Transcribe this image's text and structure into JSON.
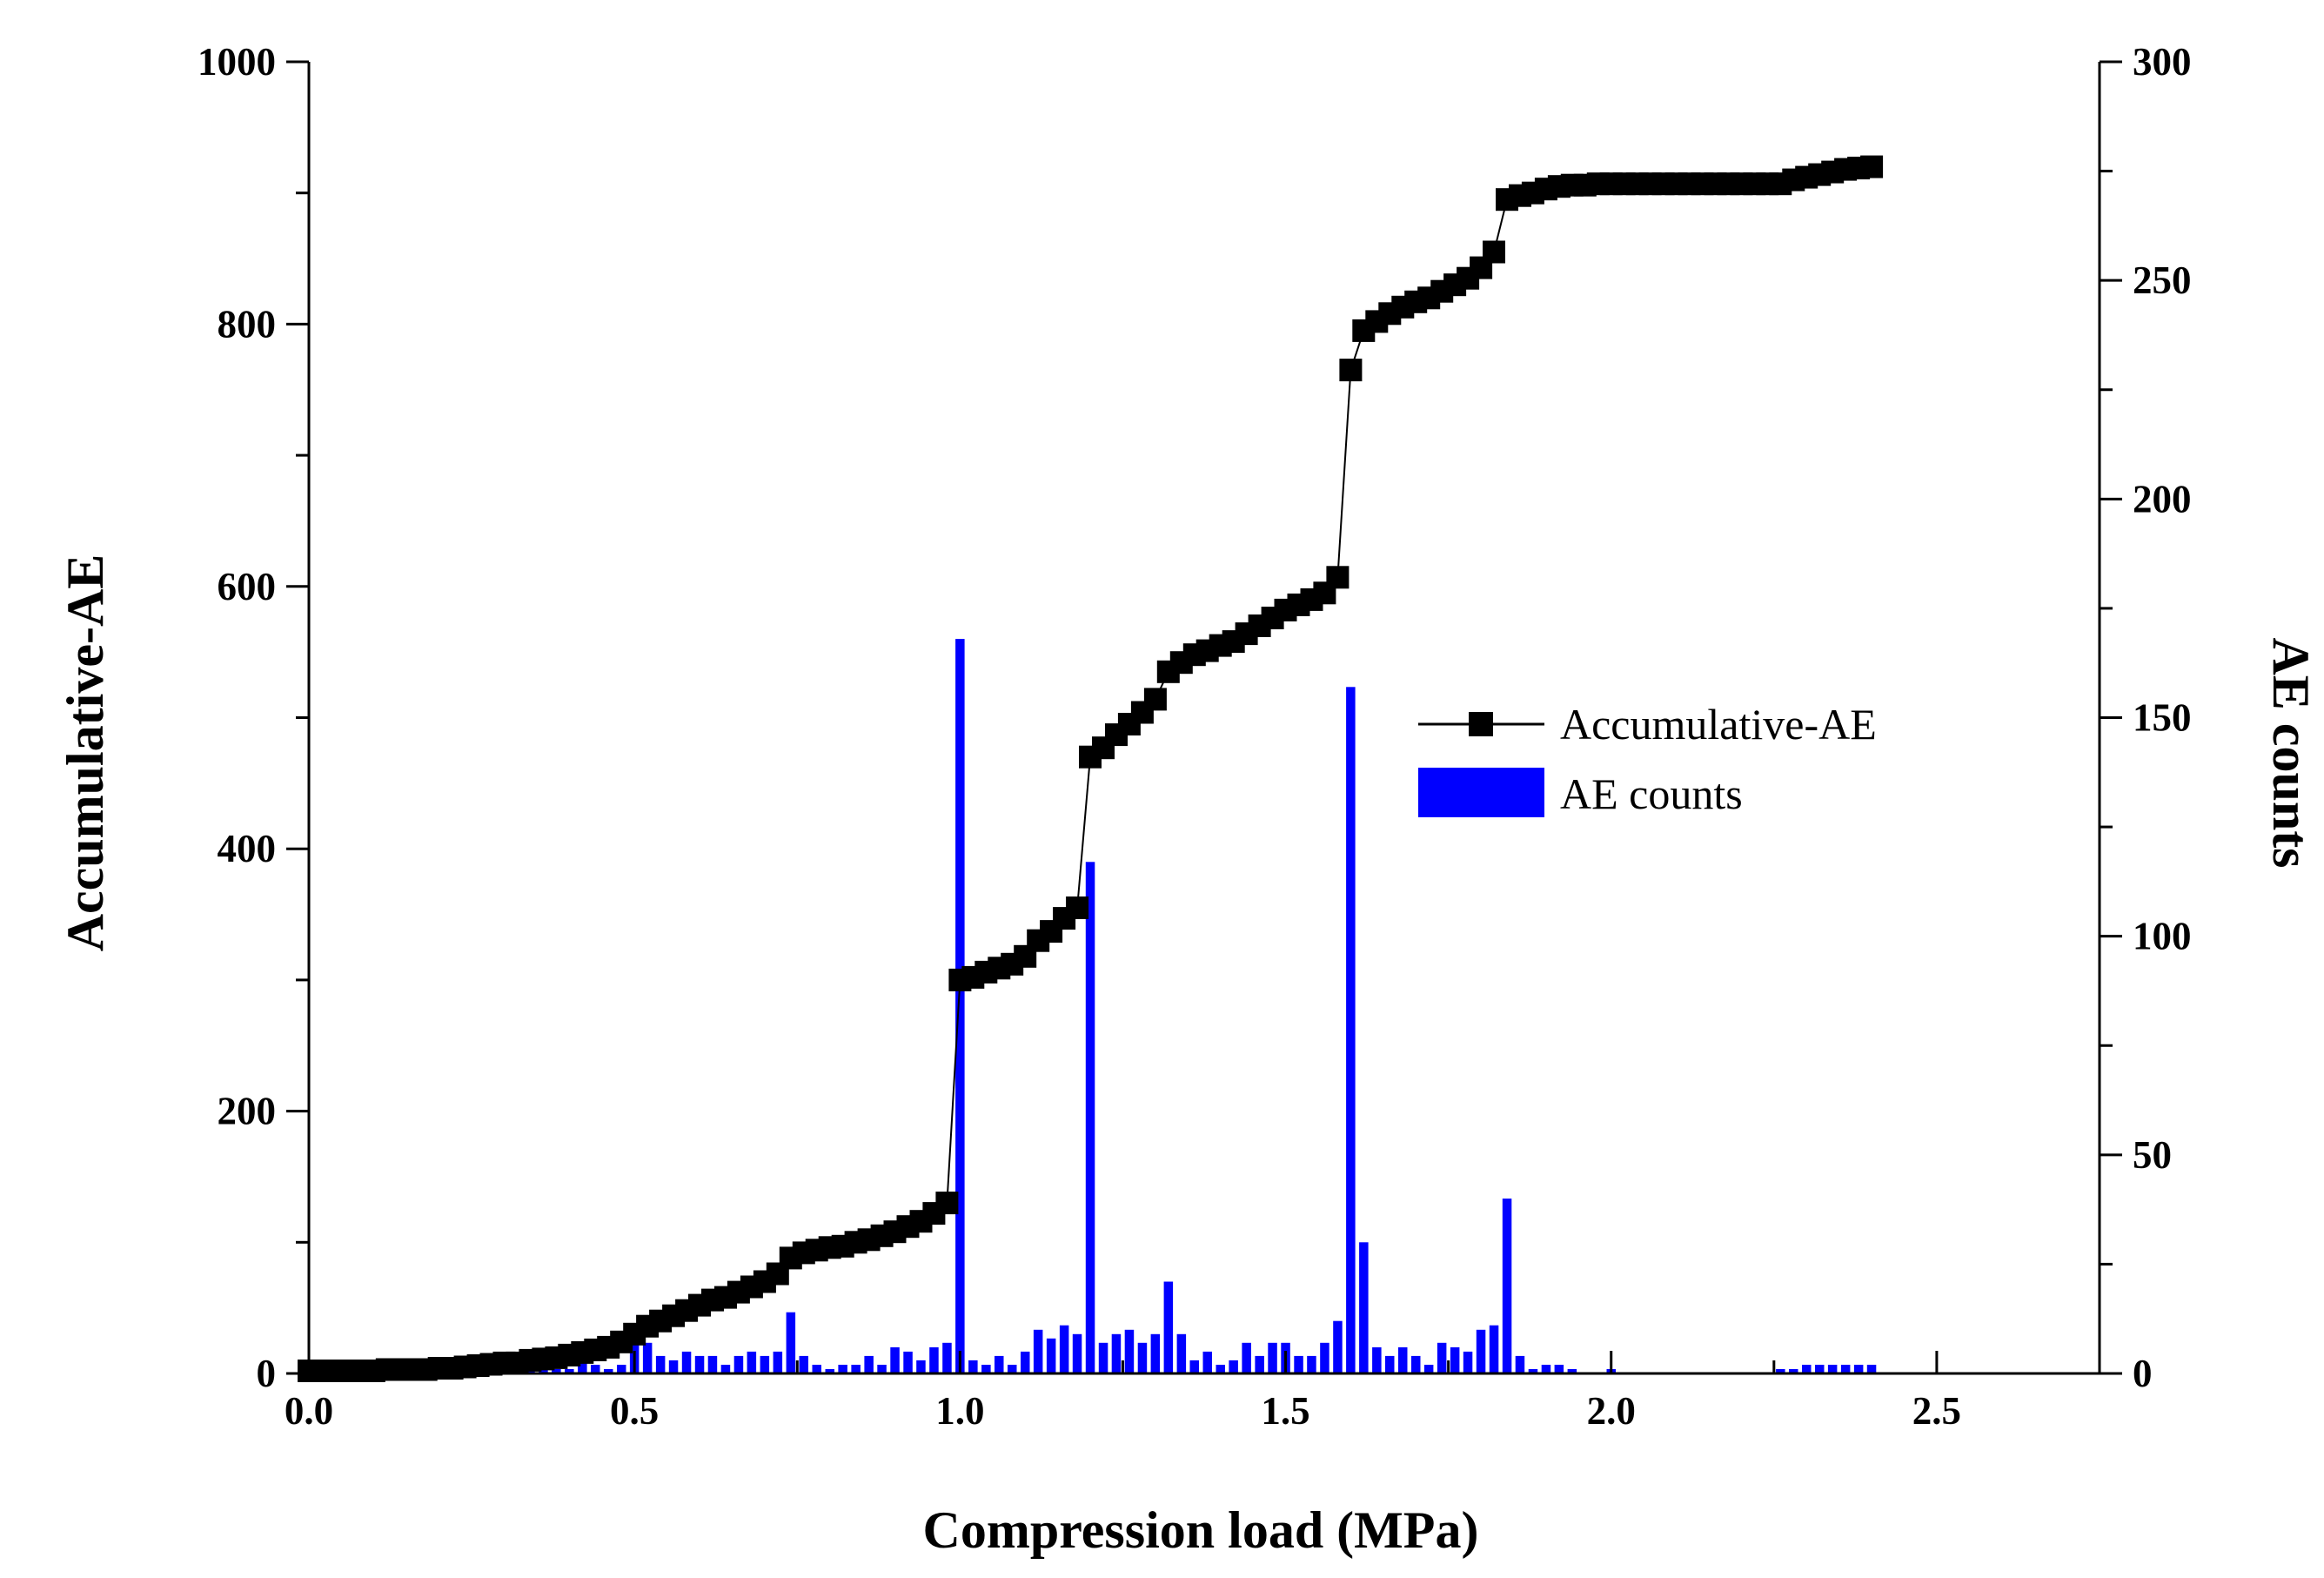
{
  "chart_data": {
    "type": "bar+line",
    "title": "",
    "xlabel": "Compression load (MPa)",
    "ylabel_left": "Accumulative-AE",
    "ylabel_right": "AE counts",
    "xlim": [
      0,
      2.75
    ],
    "ylim_left": [
      0,
      1000
    ],
    "ylim_right": [
      0,
      300
    ],
    "grid": false,
    "legend_position": "center-right",
    "x_ticks": [
      "0.0",
      "0.5",
      "1.0",
      "1.5",
      "2.0",
      "2.5"
    ],
    "y_left_ticks": [
      "0",
      "200",
      "400",
      "600",
      "800",
      "1000"
    ],
    "y_right_ticks": [
      "0",
      "50",
      "100",
      "150",
      "200",
      "250",
      "300"
    ],
    "series": [
      {
        "name": "Accumulative-AE",
        "kind": "line-square",
        "axis": "left",
        "color": "#000000",
        "points": [
          [
            0.0,
            2
          ],
          [
            0.02,
            2
          ],
          [
            0.04,
            2
          ],
          [
            0.06,
            2
          ],
          [
            0.08,
            2
          ],
          [
            0.1,
            2
          ],
          [
            0.12,
            3
          ],
          [
            0.14,
            3
          ],
          [
            0.16,
            3
          ],
          [
            0.18,
            3
          ],
          [
            0.2,
            4
          ],
          [
            0.22,
            4
          ],
          [
            0.24,
            5
          ],
          [
            0.26,
            6
          ],
          [
            0.28,
            7
          ],
          [
            0.3,
            8
          ],
          [
            0.32,
            8
          ],
          [
            0.34,
            10
          ],
          [
            0.36,
            11
          ],
          [
            0.38,
            12
          ],
          [
            0.4,
            14
          ],
          [
            0.42,
            16
          ],
          [
            0.44,
            18
          ],
          [
            0.46,
            20
          ],
          [
            0.48,
            24
          ],
          [
            0.5,
            30
          ],
          [
            0.52,
            36
          ],
          [
            0.54,
            40
          ],
          [
            0.56,
            44
          ],
          [
            0.58,
            48
          ],
          [
            0.6,
            52
          ],
          [
            0.62,
            56
          ],
          [
            0.64,
            58
          ],
          [
            0.66,
            62
          ],
          [
            0.68,
            66
          ],
          [
            0.7,
            70
          ],
          [
            0.72,
            76
          ],
          [
            0.74,
            88
          ],
          [
            0.76,
            92
          ],
          [
            0.78,
            94
          ],
          [
            0.8,
            96
          ],
          [
            0.82,
            97
          ],
          [
            0.84,
            100
          ],
          [
            0.86,
            102
          ],
          [
            0.88,
            105
          ],
          [
            0.9,
            108
          ],
          [
            0.92,
            112
          ],
          [
            0.94,
            116
          ],
          [
            0.96,
            122
          ],
          [
            0.98,
            130
          ],
          [
            1.0,
            300
          ],
          [
            1.02,
            302
          ],
          [
            1.04,
            306
          ],
          [
            1.06,
            309
          ],
          [
            1.08,
            312
          ],
          [
            1.1,
            318
          ],
          [
            1.12,
            330
          ],
          [
            1.14,
            337
          ],
          [
            1.16,
            347
          ],
          [
            1.18,
            355
          ],
          [
            1.2,
            470
          ],
          [
            1.22,
            477
          ],
          [
            1.24,
            487
          ],
          [
            1.26,
            495
          ],
          [
            1.28,
            504
          ],
          [
            1.3,
            514
          ],
          [
            1.32,
            535
          ],
          [
            1.34,
            542
          ],
          [
            1.36,
            548
          ],
          [
            1.38,
            551
          ],
          [
            1.4,
            555
          ],
          [
            1.42,
            558
          ],
          [
            1.44,
            564
          ],
          [
            1.46,
            570
          ],
          [
            1.48,
            576
          ],
          [
            1.5,
            582
          ],
          [
            1.52,
            586
          ],
          [
            1.54,
            590
          ],
          [
            1.56,
            595
          ],
          [
            1.58,
            607
          ],
          [
            1.6,
            765
          ],
          [
            1.62,
            795
          ],
          [
            1.64,
            802
          ],
          [
            1.66,
            808
          ],
          [
            1.68,
            813
          ],
          [
            1.7,
            817
          ],
          [
            1.72,
            820
          ],
          [
            1.74,
            825
          ],
          [
            1.76,
            830
          ],
          [
            1.78,
            835
          ],
          [
            1.8,
            843
          ],
          [
            1.82,
            855
          ],
          [
            1.84,
            895
          ],
          [
            1.86,
            898
          ],
          [
            1.88,
            900
          ],
          [
            1.9,
            903
          ],
          [
            1.92,
            905
          ],
          [
            1.94,
            906
          ],
          [
            1.96,
            906
          ],
          [
            1.98,
            907
          ],
          [
            2.0,
            907
          ],
          [
            2.02,
            907
          ],
          [
            2.04,
            907
          ],
          [
            2.06,
            907
          ],
          [
            2.08,
            907
          ],
          [
            2.1,
            907
          ],
          [
            2.12,
            907
          ],
          [
            2.14,
            907
          ],
          [
            2.16,
            907
          ],
          [
            2.18,
            907
          ],
          [
            2.2,
            907
          ],
          [
            2.22,
            907
          ],
          [
            2.24,
            907
          ],
          [
            2.26,
            907
          ],
          [
            2.28,
            910
          ],
          [
            2.3,
            912
          ],
          [
            2.32,
            914
          ],
          [
            2.34,
            916
          ],
          [
            2.36,
            918
          ],
          [
            2.38,
            919
          ],
          [
            2.4,
            920
          ]
        ]
      },
      {
        "name": "AE counts",
        "kind": "bar",
        "axis": "right",
        "color": "#0000FF",
        "points": [
          [
            0.04,
            1
          ],
          [
            0.06,
            1
          ],
          [
            0.14,
            1
          ],
          [
            0.16,
            1
          ],
          [
            0.22,
            2
          ],
          [
            0.24,
            1
          ],
          [
            0.26,
            1
          ],
          [
            0.28,
            2
          ],
          [
            0.3,
            1
          ],
          [
            0.32,
            1
          ],
          [
            0.34,
            2
          ],
          [
            0.36,
            2
          ],
          [
            0.38,
            1
          ],
          [
            0.4,
            1
          ],
          [
            0.42,
            5
          ],
          [
            0.44,
            2
          ],
          [
            0.46,
            1
          ],
          [
            0.48,
            2
          ],
          [
            0.5,
            7
          ],
          [
            0.52,
            7
          ],
          [
            0.54,
            4
          ],
          [
            0.56,
            3
          ],
          [
            0.58,
            5
          ],
          [
            0.6,
            4
          ],
          [
            0.62,
            4
          ],
          [
            0.64,
            2
          ],
          [
            0.66,
            4
          ],
          [
            0.68,
            5
          ],
          [
            0.7,
            4
          ],
          [
            0.72,
            5
          ],
          [
            0.74,
            14
          ],
          [
            0.76,
            4
          ],
          [
            0.78,
            2
          ],
          [
            0.8,
            1
          ],
          [
            0.82,
            2
          ],
          [
            0.84,
            2
          ],
          [
            0.86,
            4
          ],
          [
            0.88,
            2
          ],
          [
            0.9,
            6
          ],
          [
            0.92,
            5
          ],
          [
            0.94,
            3
          ],
          [
            0.96,
            6
          ],
          [
            0.98,
            7
          ],
          [
            1.0,
            168
          ],
          [
            1.02,
            3
          ],
          [
            1.04,
            2
          ],
          [
            1.06,
            4
          ],
          [
            1.08,
            2
          ],
          [
            1.1,
            5
          ],
          [
            1.12,
            10
          ],
          [
            1.14,
            8
          ],
          [
            1.16,
            11
          ],
          [
            1.18,
            9
          ],
          [
            1.2,
            117
          ],
          [
            1.22,
            7
          ],
          [
            1.24,
            9
          ],
          [
            1.26,
            10
          ],
          [
            1.28,
            7
          ],
          [
            1.3,
            9
          ],
          [
            1.32,
            21
          ],
          [
            1.34,
            9
          ],
          [
            1.36,
            3
          ],
          [
            1.38,
            5
          ],
          [
            1.4,
            2
          ],
          [
            1.42,
            3
          ],
          [
            1.44,
            7
          ],
          [
            1.46,
            4
          ],
          [
            1.48,
            7
          ],
          [
            1.5,
            7
          ],
          [
            1.52,
            4
          ],
          [
            1.54,
            4
          ],
          [
            1.56,
            7
          ],
          [
            1.58,
            12
          ],
          [
            1.6,
            157
          ],
          [
            1.62,
            30
          ],
          [
            1.64,
            6
          ],
          [
            1.66,
            4
          ],
          [
            1.68,
            6
          ],
          [
            1.7,
            4
          ],
          [
            1.72,
            2
          ],
          [
            1.74,
            7
          ],
          [
            1.76,
            6
          ],
          [
            1.78,
            5
          ],
          [
            1.8,
            10
          ],
          [
            1.82,
            11
          ],
          [
            1.84,
            40
          ],
          [
            1.86,
            4
          ],
          [
            1.88,
            1
          ],
          [
            1.9,
            2
          ],
          [
            1.92,
            2
          ],
          [
            1.94,
            1
          ],
          [
            2.0,
            1
          ],
          [
            2.26,
            1
          ],
          [
            2.28,
            1
          ],
          [
            2.3,
            2
          ],
          [
            2.32,
            2
          ],
          [
            2.34,
            2
          ],
          [
            2.36,
            2
          ],
          [
            2.38,
            2
          ],
          [
            2.4,
            2
          ]
        ]
      }
    ]
  }
}
